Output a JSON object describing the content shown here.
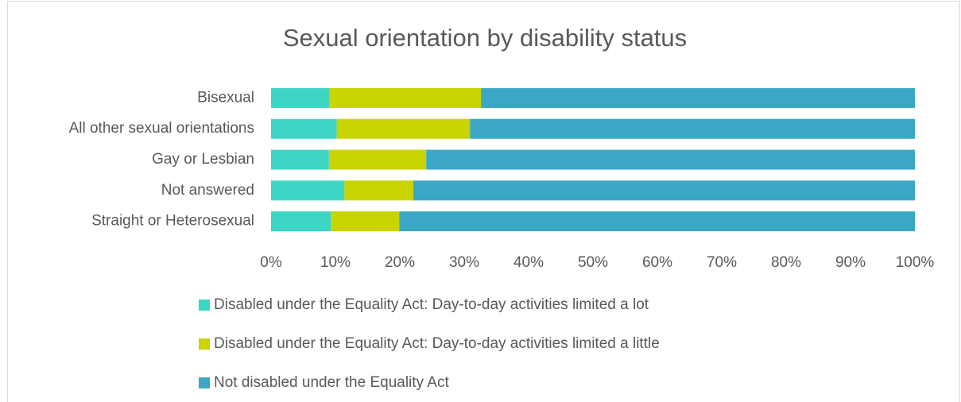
{
  "chart_data": {
    "type": "stacked_bar_horizontal",
    "title": "Sexual orientation by disability status",
    "categories": [
      "Bisexual",
      "All other sexual orientations",
      "Gay or Lesbian",
      "Not answered",
      "Straight or Heterosexual"
    ],
    "series": [
      {
        "name": "Disabled under the Equality Act: Day-to-day activities limited a lot",
        "color": "#3dd6c4",
        "values": [
          9.1,
          10.2,
          9.0,
          11.4,
          9.3
        ]
      },
      {
        "name": "Disabled under the Equality Act: Day-to-day activities limited a little",
        "color": "#c9d400",
        "values": [
          23.5,
          20.7,
          15.1,
          10.7,
          10.6
        ]
      },
      {
        "name": "Not disabled under the Equality Act",
        "color": "#3aa8c4",
        "values": [
          67.4,
          69.1,
          75.9,
          77.9,
          80.1
        ]
      }
    ],
    "xlim": [
      0,
      100
    ],
    "xticks": [
      {
        "value": 0,
        "label": "0%"
      },
      {
        "value": 10,
        "label": "10%"
      },
      {
        "value": 20,
        "label": "20%"
      },
      {
        "value": 30,
        "label": "30%"
      },
      {
        "value": 40,
        "label": "40%"
      },
      {
        "value": 50,
        "label": "50%"
      },
      {
        "value": 60,
        "label": "60%"
      },
      {
        "value": 70,
        "label": "70%"
      },
      {
        "value": 80,
        "label": "80%"
      },
      {
        "value": 90,
        "label": "90%"
      },
      {
        "value": 100,
        "label": "100%"
      }
    ],
    "grid": false,
    "legend": "bottom"
  }
}
